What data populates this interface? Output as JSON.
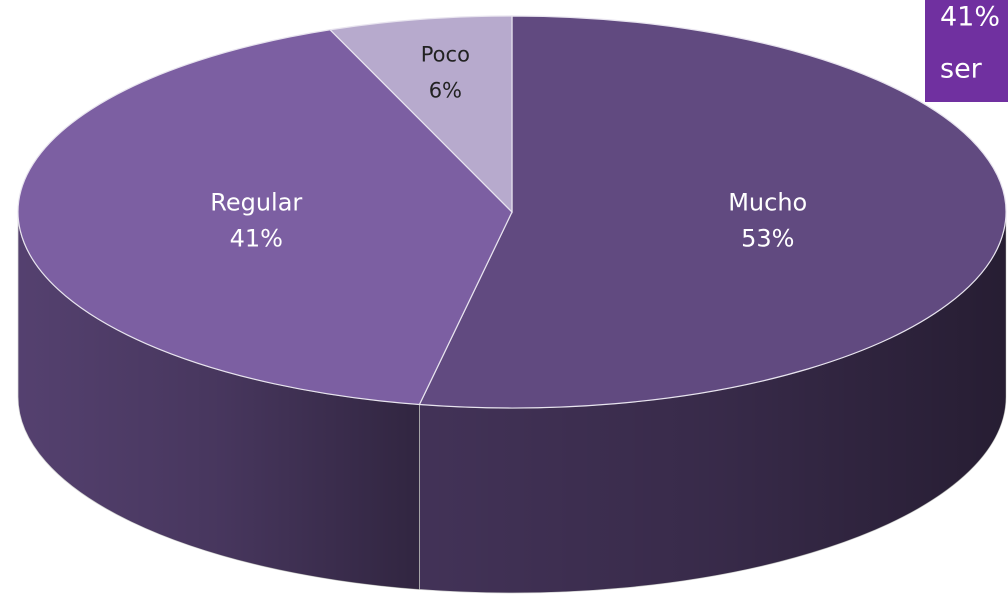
{
  "chart_data": {
    "type": "pie",
    "categories": [
      "Mucho",
      "Regular",
      "Poco"
    ],
    "values": [
      53,
      41,
      6
    ],
    "value_labels": [
      "53%",
      "41%",
      "6%"
    ],
    "colors": [
      "#614a80",
      "#7c5fa2",
      "#b7aacd"
    ],
    "annotations": [
      "41%",
      "ser"
    ],
    "annotation_color": "#7030a0"
  }
}
